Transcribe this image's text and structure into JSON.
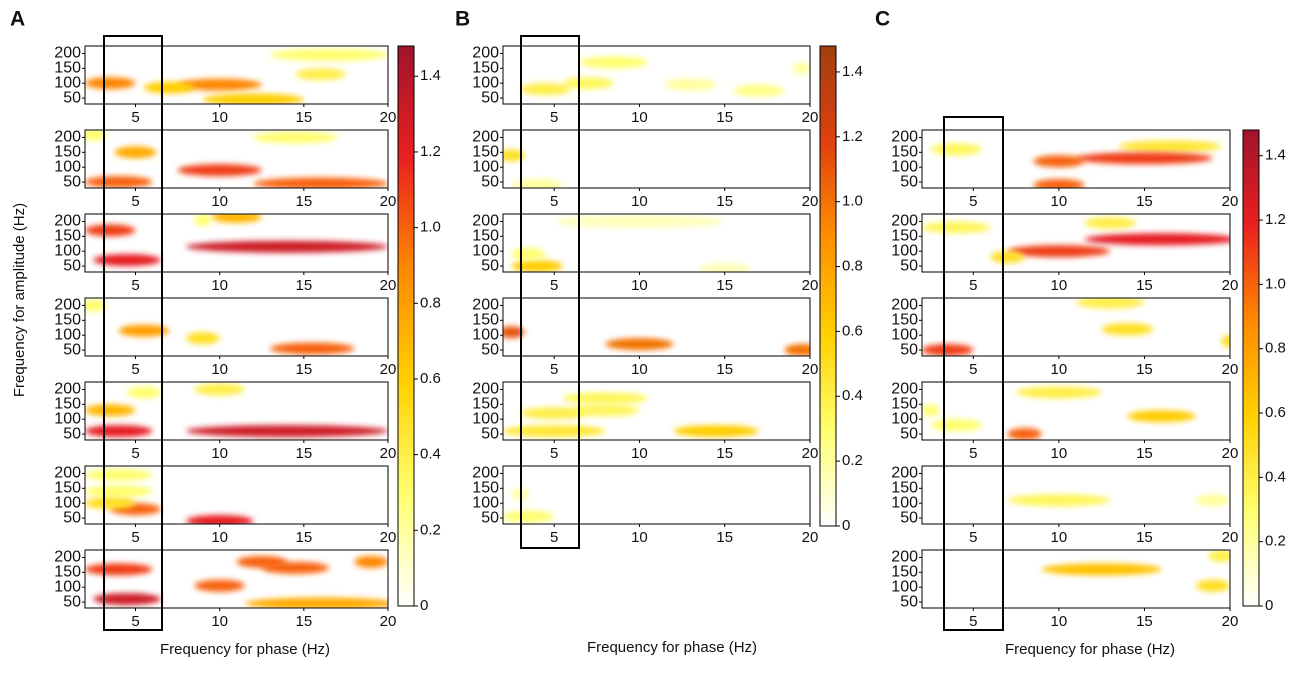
{
  "chart_data": [
    {
      "type": "heatmap",
      "panel": "A",
      "ylabel": "Frequency for amplitude (Hz)",
      "xlabel": "Frequency for phase (Hz)",
      "xlim": [
        2,
        20
      ],
      "ylim": [
        30,
        225
      ],
      "xticks": [
        5,
        10,
        15,
        20
      ],
      "yticks": [
        50,
        100,
        150,
        200
      ],
      "clim": [
        0,
        1.48
      ],
      "cticks": [
        0,
        0.2,
        0.4,
        0.6,
        0.8,
        {
          "value": 1,
          "label": "1.0"
        },
        1.2,
        1.4
      ],
      "colormap": [
        "#ffffff",
        "#ffff70",
        "#ffd000",
        "#ff8a00",
        "#ea2020",
        "#a0142c"
      ],
      "subplots": [
        {
          "x": [
            16.5,
            16,
            10,
            3.5,
            7,
            12
          ],
          "y": [
            195,
            130,
            95,
            100,
            85,
            45
          ],
          "width": [
            7,
            3,
            5,
            3,
            3,
            6
          ],
          "values": [
            0.3,
            0.4,
            0.9,
            0.9,
            0.6,
            0.6
          ]
        },
        {
          "x": [
            2.5,
            14.5,
            5,
            10,
            4,
            16
          ],
          "y": [
            210,
            200,
            150,
            90,
            50,
            45
          ],
          "width": [
            1.5,
            5,
            2.5,
            5,
            4,
            8
          ],
          "values": [
            0.3,
            0.3,
            0.75,
            1.1,
            1.0,
            1.0
          ]
        },
        {
          "x": [
            3.5,
            11,
            14,
            4.5,
            9
          ],
          "y": [
            170,
            215,
            115,
            70,
            205
          ],
          "width": [
            3,
            3,
            12,
            4,
            1
          ],
          "values": [
            1.1,
            0.7,
            1.3,
            1.2,
            0.3
          ]
        },
        {
          "x": [
            2.5,
            5.5,
            15.5,
            9
          ],
          "y": [
            200,
            115,
            55,
            90
          ],
          "width": [
            1.5,
            3,
            5,
            2
          ],
          "values": [
            0.3,
            0.8,
            1.0,
            0.5
          ]
        },
        {
          "x": [
            10,
            3.5,
            14,
            4,
            5.5
          ],
          "y": [
            200,
            130,
            60,
            60,
            190
          ],
          "width": [
            3,
            3,
            12,
            4,
            2
          ],
          "values": [
            0.4,
            0.7,
            1.3,
            1.2,
            0.3
          ]
        },
        {
          "x": [
            4,
            4,
            5,
            10,
            3.5
          ],
          "y": [
            195,
            140,
            80,
            40,
            100
          ],
          "width": [
            4,
            4,
            3,
            4,
            3
          ],
          "values": [
            0.3,
            0.3,
            1.0,
            1.2,
            0.5
          ]
        },
        {
          "x": [
            4,
            4.5,
            12.5,
            14.5,
            16,
            10,
            19
          ],
          "y": [
            160,
            60,
            185,
            165,
            45,
            105,
            185
          ],
          "width": [
            4,
            4,
            3,
            4,
            9,
            3,
            2
          ],
          "values": [
            1.1,
            1.3,
            1.0,
            1.0,
            0.75,
            1.0,
            0.9
          ]
        }
      ]
    },
    {
      "type": "heatmap",
      "panel": "B",
      "xlabel": "Frequency for phase (Hz)",
      "xlim": [
        2,
        20
      ],
      "ylim": [
        30,
        225
      ],
      "xticks": [
        5,
        10,
        15,
        20
      ],
      "yticks": [
        50,
        100,
        150,
        200
      ],
      "clim": [
        0,
        1.48
      ],
      "cticks": [
        0,
        0.2,
        0.4,
        0.6,
        0.8,
        {
          "value": 1,
          "label": "1.0"
        },
        1.2,
        1.4
      ],
      "colormap": [
        "#ffffff",
        "#ffff70",
        "#ffd000",
        "#ff9000",
        "#e04010",
        "#a04010"
      ],
      "subplots": [
        {
          "x": [
            8.5,
            4.5,
            7,
            13,
            17,
            19.5
          ],
          "y": [
            170,
            80,
            100,
            95,
            75,
            150
          ],
          "width": [
            4,
            3,
            3,
            3,
            3,
            1
          ],
          "values": [
            0.3,
            0.4,
            0.35,
            0.2,
            0.25,
            0.2
          ]
        },
        {
          "x": [
            2.5,
            4
          ],
          "y": [
            140,
            40
          ],
          "width": [
            1.5,
            3
          ],
          "values": [
            0.5,
            0.2
          ]
        },
        {
          "x": [
            4,
            3.5,
            10,
            15
          ],
          "y": [
            50,
            90,
            200,
            40
          ],
          "width": [
            3,
            2,
            10,
            3
          ],
          "values": [
            0.6,
            0.3,
            0.15,
            0.15
          ]
        },
        {
          "x": [
            2.5,
            10,
            19.5
          ],
          "y": [
            110,
            70,
            50
          ],
          "width": [
            1.5,
            4,
            2
          ],
          "values": [
            1.1,
            1.0,
            1.0
          ]
        },
        {
          "x": [
            8,
            5,
            5,
            14.5,
            8
          ],
          "y": [
            170,
            120,
            60,
            60,
            130
          ],
          "width": [
            5,
            4,
            6,
            5,
            4
          ],
          "values": [
            0.35,
            0.4,
            0.45,
            0.6,
            0.35
          ]
        },
        {
          "x": [
            3.5,
            3
          ],
          "y": [
            55,
            130
          ],
          "width": [
            3,
            1
          ],
          "values": [
            0.3,
            0.2
          ]
        }
      ]
    },
    {
      "type": "heatmap",
      "panel": "C",
      "xlabel": "Frequency for phase (Hz)",
      "xlim": [
        2,
        20
      ],
      "ylim": [
        30,
        225
      ],
      "xticks": [
        5,
        10,
        15,
        20
      ],
      "yticks": [
        50,
        100,
        150,
        200
      ],
      "clim": [
        0,
        1.48
      ],
      "cticks": [
        0,
        0.2,
        0.4,
        0.6,
        0.8,
        {
          "value": 1,
          "label": "1.0"
        },
        1.2,
        1.4
      ],
      "colormap": [
        "#ffffff",
        "#ffff70",
        "#ffd000",
        "#ff8a00",
        "#ea2020",
        "#a0142c"
      ],
      "subplots": [
        {
          "x": [
            4,
            16.5,
            15,
            10,
            10
          ],
          "y": [
            160,
            170,
            130,
            120,
            40
          ],
          "width": [
            3,
            6,
            8,
            3,
            3
          ],
          "values": [
            0.35,
            0.45,
            1.1,
            1.0,
            1.0
          ]
        },
        {
          "x": [
            4,
            10,
            16,
            13,
            7
          ],
          "y": [
            180,
            100,
            140,
            195,
            80
          ],
          "width": [
            4,
            6,
            9,
            3,
            2
          ],
          "values": [
            0.35,
            1.1,
            1.2,
            0.4,
            0.5
          ]
        },
        {
          "x": [
            3.5,
            13,
            14,
            20
          ],
          "y": [
            50,
            210,
            120,
            80
          ],
          "width": [
            3,
            4,
            3,
            1
          ],
          "values": [
            1.1,
            0.4,
            0.5,
            0.5
          ]
        },
        {
          "x": [
            10,
            16,
            8,
            2.5,
            4
          ],
          "y": [
            190,
            110,
            50,
            130,
            80
          ],
          "width": [
            5,
            4,
            2,
            1,
            3
          ],
          "values": [
            0.4,
            0.6,
            1.0,
            0.3,
            0.3
          ]
        },
        {
          "x": [
            10,
            19
          ],
          "y": [
            110,
            110
          ],
          "width": [
            6,
            2
          ],
          "values": [
            0.35,
            0.2
          ]
        },
        {
          "x": [
            12.5,
            19.5,
            19
          ],
          "y": [
            160,
            205,
            105
          ],
          "width": [
            7,
            1.5,
            2
          ],
          "values": [
            0.65,
            0.4,
            0.5
          ]
        }
      ]
    }
  ]
}
